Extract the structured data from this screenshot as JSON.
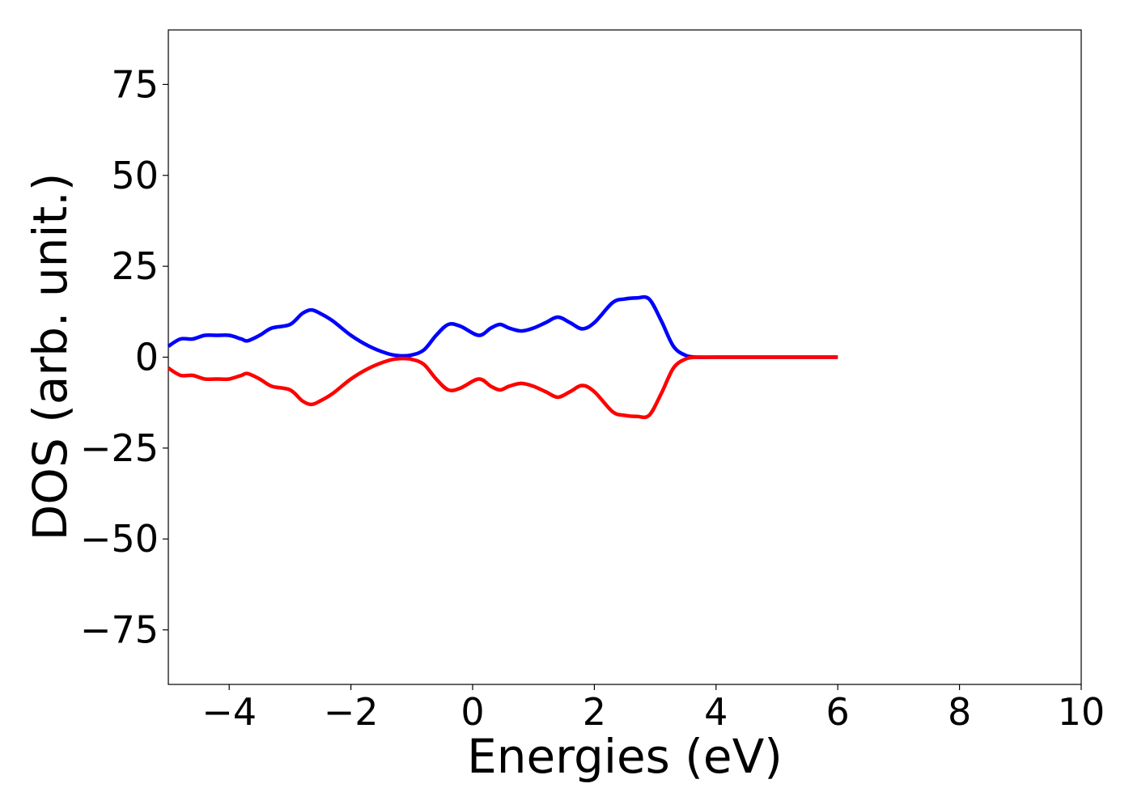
{
  "chart_data": {
    "type": "line",
    "title": "",
    "xlabel": "Energies (eV)",
    "ylabel": "DOS (arb. unit.)",
    "xlim": [
      -5,
      10
    ],
    "ylim": [
      -90,
      90
    ],
    "x_ticks": [
      -4,
      -2,
      0,
      2,
      4,
      6,
      8,
      10
    ],
    "x_tick_labels": [
      "−4",
      "−2",
      "0",
      "2",
      "4",
      "6",
      "8",
      "10"
    ],
    "y_ticks": [
      75,
      50,
      25,
      0,
      -25,
      -50,
      -75
    ],
    "y_tick_labels": [
      "75",
      "50",
      "25",
      "0",
      "−25",
      "−50",
      "−75"
    ],
    "grid": false,
    "legend": "none",
    "series": [
      {
        "color": "#0000ff",
        "x": [
          -5.0,
          -4.8,
          -4.6,
          -4.4,
          -4.2,
          -4.0,
          -3.8,
          -3.7,
          -3.5,
          -3.3,
          -3.0,
          -2.8,
          -2.65,
          -2.5,
          -2.3,
          -2.0,
          -1.7,
          -1.4,
          -1.2,
          -1.0,
          -0.8,
          -0.6,
          -0.4,
          -0.2,
          0.1,
          0.3,
          0.45,
          0.6,
          0.8,
          1.0,
          1.2,
          1.4,
          1.6,
          1.8,
          2.0,
          2.3,
          2.5,
          2.7,
          2.9,
          3.1,
          3.3,
          3.5,
          3.7,
          4.0,
          6.0
        ],
        "y": [
          3,
          5,
          5,
          6,
          6,
          6,
          5,
          4.5,
          6,
          8,
          9,
          12,
          13,
          12,
          10,
          6,
          3,
          1,
          0.4,
          0.6,
          2,
          6,
          9,
          8.5,
          6,
          8,
          9,
          8,
          7.2,
          8,
          9.5,
          11,
          9.5,
          7.8,
          9.5,
          15,
          16,
          16.3,
          16,
          10,
          3,
          0.5,
          0,
          0,
          0
        ]
      },
      {
        "color": "#ff0000",
        "x": [
          -5.0,
          -4.8,
          -4.6,
          -4.4,
          -4.2,
          -4.0,
          -3.8,
          -3.7,
          -3.5,
          -3.3,
          -3.0,
          -2.8,
          -2.65,
          -2.5,
          -2.3,
          -2.0,
          -1.7,
          -1.4,
          -1.2,
          -1.0,
          -0.8,
          -0.6,
          -0.4,
          -0.2,
          0.1,
          0.3,
          0.45,
          0.6,
          0.8,
          1.0,
          1.2,
          1.4,
          1.6,
          1.8,
          2.0,
          2.3,
          2.5,
          2.7,
          2.9,
          3.1,
          3.3,
          3.5,
          3.7,
          4.0,
          6.0
        ],
        "y": [
          -3,
          -5,
          -5,
          -6,
          -6,
          -6,
          -5,
          -4.5,
          -6,
          -8,
          -9,
          -12,
          -13,
          -12,
          -10,
          -6,
          -3,
          -1,
          -0.4,
          -0.6,
          -2,
          -6,
          -9,
          -8.5,
          -6,
          -8,
          -9,
          -8,
          -7.2,
          -8,
          -9.5,
          -11,
          -9.5,
          -7.8,
          -9.5,
          -15,
          -16,
          -16.3,
          -16,
          -10,
          -3,
          -0.5,
          0,
          0,
          0
        ]
      }
    ]
  }
}
